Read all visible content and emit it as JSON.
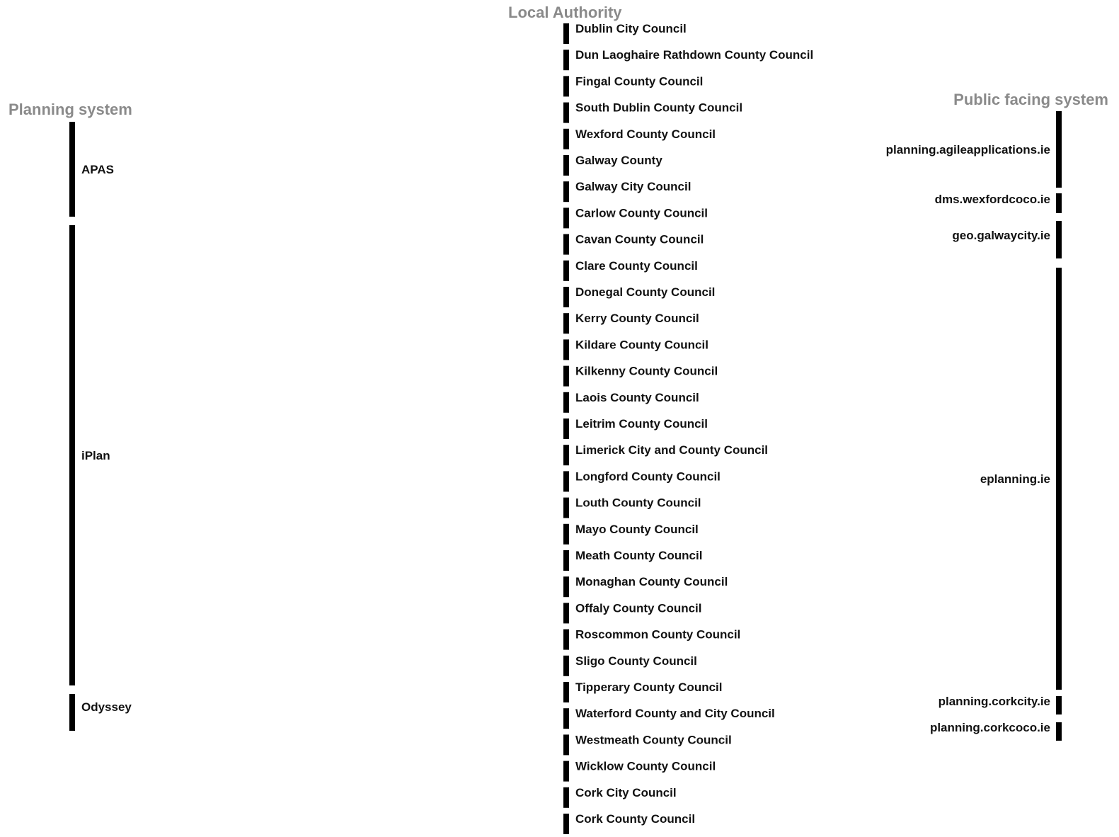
{
  "headers": {
    "source": "Planning system",
    "middle": "Local Authority",
    "target": "Public facing system"
  },
  "colors": {
    "APAS": "#7ed321",
    "iPlan": "#f5a623",
    "Odyssey": "#f4e526",
    "wexford_link": "#5fa81a",
    "galway_link": "#f0c36a",
    "corkcity_link": "#c8c41c",
    "corkcoco_link": "#d8cf3a",
    "node": "#000000"
  },
  "planning_systems": [
    "APAS",
    "iPlan",
    "Odyssey"
  ],
  "public_systems": [
    "planning.agileapplications.ie",
    "dms.wexfordcoco.ie",
    "geo.galwaycity.ie",
    "eplanning.ie",
    "planning.corkcity.ie",
    "planning.corkcoco.ie"
  ],
  "authorities": [
    {
      "name": "Dublin City Council",
      "source": "APAS",
      "target": "planning.agileapplications.ie"
    },
    {
      "name": "Dun Laoghaire Rathdown County Council",
      "source": "APAS",
      "target": "planning.agileapplications.ie"
    },
    {
      "name": "Fingal County Council",
      "source": "APAS",
      "target": "planning.agileapplications.ie"
    },
    {
      "name": "South Dublin County Council",
      "source": "APAS",
      "target": "planning.agileapplications.ie"
    },
    {
      "name": "Wexford County Council",
      "source": "APAS",
      "target": "dms.wexfordcoco.ie"
    },
    {
      "name": "Galway County",
      "source": "iPlan",
      "target": "geo.galwaycity.ie"
    },
    {
      "name": "Galway City Council",
      "source": "iPlan",
      "target": "geo.galwaycity.ie"
    },
    {
      "name": "Carlow County Council",
      "source": "iPlan",
      "target": "eplanning.ie"
    },
    {
      "name": "Cavan County Council",
      "source": "iPlan",
      "target": "eplanning.ie"
    },
    {
      "name": "Clare County Council",
      "source": "iPlan",
      "target": "eplanning.ie"
    },
    {
      "name": "Donegal County Council",
      "source": "iPlan",
      "target": "eplanning.ie"
    },
    {
      "name": "Kerry County Council",
      "source": "iPlan",
      "target": "eplanning.ie"
    },
    {
      "name": "Kildare County Council",
      "source": "iPlan",
      "target": "eplanning.ie"
    },
    {
      "name": "Kilkenny County Council",
      "source": "iPlan",
      "target": "eplanning.ie"
    },
    {
      "name": "Laois County Council",
      "source": "iPlan",
      "target": "eplanning.ie"
    },
    {
      "name": "Leitrim County Council",
      "source": "iPlan",
      "target": "eplanning.ie"
    },
    {
      "name": "Limerick City and County Council",
      "source": "iPlan",
      "target": "eplanning.ie"
    },
    {
      "name": "Longford County Council",
      "source": "iPlan",
      "target": "eplanning.ie"
    },
    {
      "name": "Louth County Council",
      "source": "iPlan",
      "target": "eplanning.ie"
    },
    {
      "name": "Mayo County Council",
      "source": "iPlan",
      "target": "eplanning.ie"
    },
    {
      "name": "Meath County Council",
      "source": "iPlan",
      "target": "eplanning.ie"
    },
    {
      "name": "Monaghan County Council",
      "source": "iPlan",
      "target": "eplanning.ie"
    },
    {
      "name": "Offaly County Council",
      "source": "iPlan",
      "target": "eplanning.ie"
    },
    {
      "name": "Roscommon County Council",
      "source": "iPlan",
      "target": "eplanning.ie"
    },
    {
      "name": "Sligo County Council",
      "source": "iPlan",
      "target": "eplanning.ie"
    },
    {
      "name": "Tipperary County Council",
      "source": "iPlan",
      "target": "eplanning.ie"
    },
    {
      "name": "Waterford County and City Council",
      "source": "iPlan",
      "target": "eplanning.ie"
    },
    {
      "name": "Westmeath County Council",
      "source": "iPlan",
      "target": "eplanning.ie"
    },
    {
      "name": "Wicklow County Council",
      "source": "iPlan",
      "target": "eplanning.ie"
    },
    {
      "name": "Cork City Council",
      "source": "Odyssey",
      "target": "planning.corkcity.ie"
    },
    {
      "name": "Cork County Council",
      "source": "Odyssey",
      "target": "planning.corkcoco.ie"
    }
  ]
}
